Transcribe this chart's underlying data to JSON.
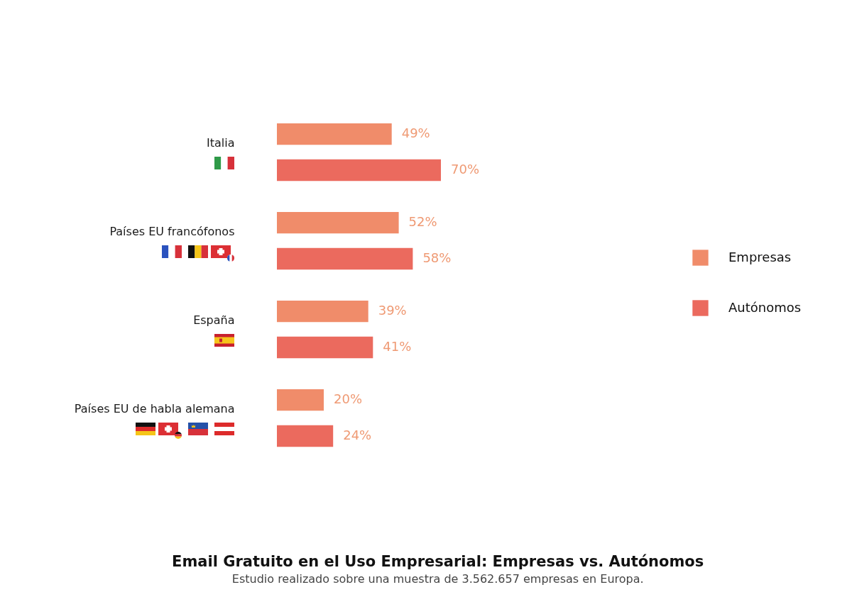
{
  "chart_data": {
    "type": "bar",
    "orientation": "horizontal",
    "title": "Email Gratuito en el Uso Empresarial: Empresas vs. Autónomos",
    "subtitle": "Estudio realizado sobre una muestra de 3.562.657 empresas en Europa.",
    "categories": [
      "Italia",
      "Países EU francófonos",
      "España",
      "Países EU de habla alemana"
    ],
    "series": [
      {
        "name": "Empresas",
        "color": "#f08c6a",
        "values": [
          49,
          52,
          39,
          20
        ],
        "value_labels": [
          "49%",
          "52%",
          "39%",
          "20%"
        ]
      },
      {
        "name": "Autónomos",
        "color": "#eb6a5e",
        "values": [
          70,
          58,
          41,
          24
        ],
        "value_labels": [
          "70%",
          "58%",
          "41%",
          "24%"
        ]
      }
    ],
    "legend": "right",
    "tick_labels": "y"
  }
}
